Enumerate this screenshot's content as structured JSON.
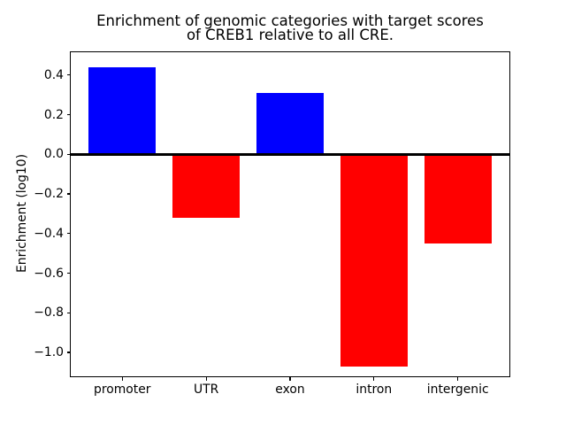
{
  "figure": {
    "title": "Enrichment of genomic categories with target scores\nof CREB1 relative to all CRE.",
    "ylabel": "Enrichment (log10)",
    "background_color": "#ffffff",
    "axes_edge_color": "#000000"
  },
  "chart_data": {
    "type": "bar",
    "title": "Enrichment of genomic categories with target scores\nof CREB1 relative to all CRE.",
    "xlabel": "",
    "ylabel": "Enrichment (log10)",
    "categories": [
      "promoter",
      "UTR",
      "exon",
      "intron",
      "intergenic"
    ],
    "values": [
      0.44,
      -0.32,
      0.31,
      -1.07,
      -0.45
    ],
    "bar_colors": [
      "#0000ff",
      "#ff0000",
      "#0000ff",
      "#ff0000",
      "#ff0000"
    ],
    "positive_color": "#0000ff",
    "negative_color": "#ff0000",
    "ylim": [
      -1.125,
      0.52
    ],
    "yticks": [
      0.4,
      0.2,
      0.0,
      -0.2,
      -0.4,
      -0.6,
      -0.8,
      -1.0
    ],
    "ytick_labels": [
      "0.4",
      "0.2",
      "0.0",
      "−0.2",
      "−0.4",
      "−0.6",
      "−0.8",
      "−1.0"
    ],
    "bar_width_fraction": 0.8,
    "x_margin_units": 0.625,
    "zero_line": {
      "y": 0.0,
      "color": "#000000",
      "thickness_px": 2.5
    },
    "grid": false,
    "legend": false
  }
}
